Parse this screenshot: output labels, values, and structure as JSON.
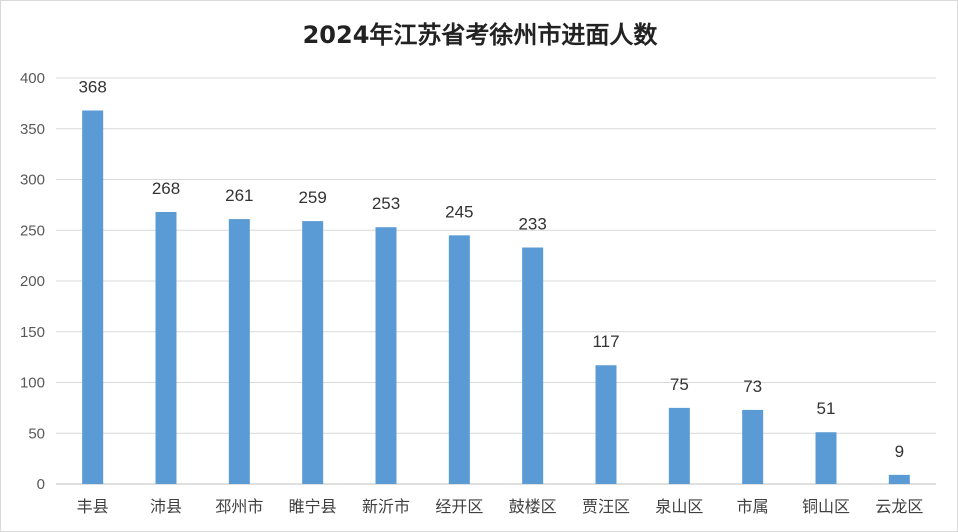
{
  "chart_data": {
    "type": "bar",
    "title": "2024年江苏省考徐州市进面人数",
    "xlabel": "",
    "ylabel": "",
    "categories": [
      "丰县",
      "沛县",
      "邳州市",
      "睢宁县",
      "新沂市",
      "经开区",
      "鼓楼区",
      "贾汪区",
      "泉山区",
      "市属",
      "铜山区",
      "云龙区"
    ],
    "values": [
      368,
      268,
      261,
      259,
      253,
      245,
      233,
      117,
      75,
      73,
      51,
      9
    ],
    "ylim": [
      0,
      400
    ],
    "yticks": [
      0,
      50,
      100,
      150,
      200,
      250,
      300,
      350,
      400
    ],
    "grid": true,
    "data_labels": true,
    "bar_color": "#5b9bd5"
  }
}
